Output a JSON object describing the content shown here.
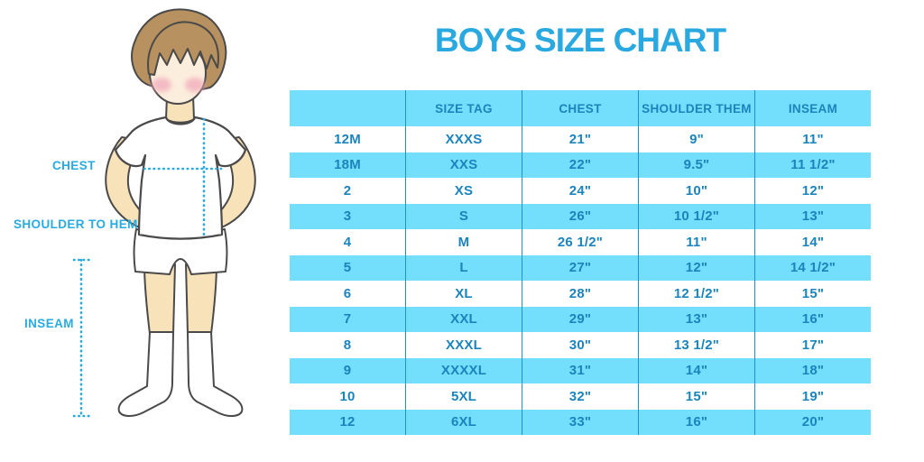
{
  "title": {
    "text": "BOYS SIZE CHART",
    "color": "#29a9e0"
  },
  "figure": {
    "labels": {
      "chest": "CHEST",
      "shoulder_to_hem": "SHOULDER TO HEM",
      "inseam": "INSEAM"
    },
    "label_color": "#29abe2",
    "colors": {
      "hair": "#b79160",
      "skin": "#f8e2ba",
      "face": "#fceedd",
      "cheek": "#f2aebd",
      "outline": "#4a4a4a",
      "clothes": "#ffffff",
      "measure_line": "#29abe2"
    }
  },
  "table": {
    "stripe_color": "#73dffd",
    "divider_color": "#1e93c9",
    "text_color": "#1b84bd",
    "header": [
      "",
      "SIZE TAG",
      "CHEST",
      "SHOULDER THEM",
      "INSEAM"
    ],
    "rows": [
      [
        "12M",
        "XXXS",
        "21\"",
        "9\"",
        "11\""
      ],
      [
        "18M",
        "XXS",
        "22\"",
        "9.5\"",
        "11 1/2\""
      ],
      [
        "2",
        "XS",
        "24\"",
        "10\"",
        "12\""
      ],
      [
        "3",
        "S",
        "26\"",
        "10 1/2\"",
        "13\""
      ],
      [
        "4",
        "M",
        "26 1/2\"",
        "11\"",
        "14\""
      ],
      [
        "5",
        "L",
        "27\"",
        "12\"",
        "14 1/2\""
      ],
      [
        "6",
        "XL",
        "28\"",
        "12 1/2\"",
        "15\""
      ],
      [
        "7",
        "XXL",
        "29\"",
        "13\"",
        "16\""
      ],
      [
        "8",
        "XXXL",
        "30\"",
        "13 1/2\"",
        "17\""
      ],
      [
        "9",
        "XXXXL",
        "31\"",
        "14\"",
        "18\""
      ],
      [
        "10",
        "5XL",
        "32\"",
        "15\"",
        "19\""
      ],
      [
        "12",
        "6XL",
        "33\"",
        "16\"",
        "20\""
      ]
    ]
  }
}
